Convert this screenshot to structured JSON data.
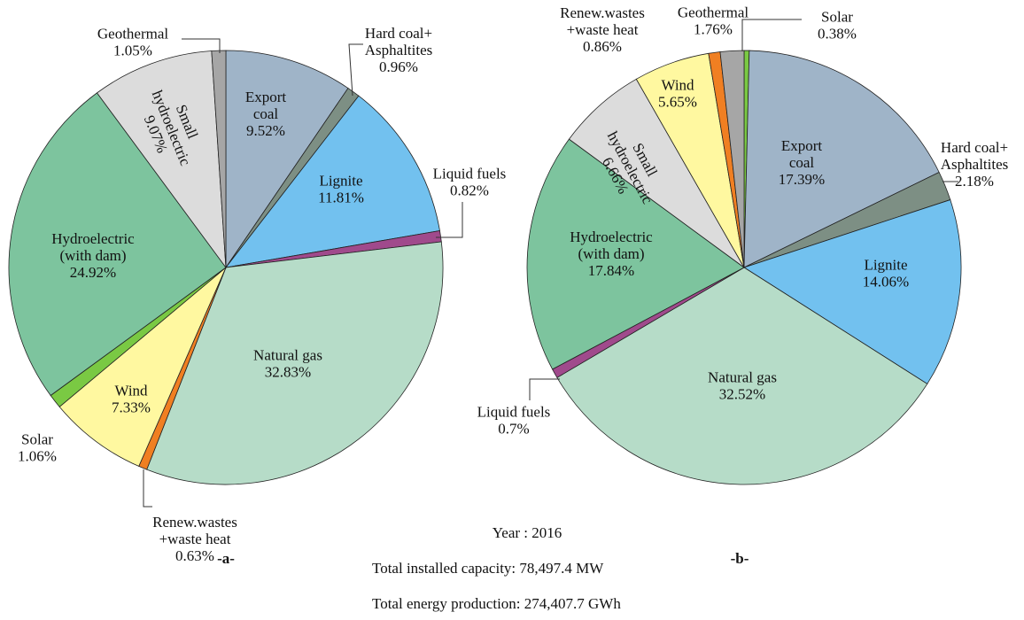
{
  "chart_data": [
    {
      "type": "pie",
      "subtitle": "-a-",
      "categories": [
        "Export\ncoal",
        "Hard coal+\nAsphaltites",
        "Lignite",
        "Liquid fuels",
        "Natural gas",
        "Renew.wastes\n+waste heat",
        "Wind",
        "Solar",
        "Hydroelectric\n(with dam)",
        "Small\nhydroelectric",
        "Geothermal"
      ],
      "values": [
        9.52,
        0.96,
        11.81,
        0.82,
        32.83,
        0.63,
        7.33,
        1.06,
        24.92,
        9.07,
        1.05
      ],
      "value_labels": [
        "9.52%",
        "0.96%",
        "11.81%",
        "0.82%",
        "32.83%",
        "0.63%",
        "7.33%",
        "1.06%",
        "24.92%",
        "9.07%",
        "1.05%"
      ],
      "colors": [
        "#9fb4c8",
        "#7d8f84",
        "#72c1ef",
        "#a04a8c",
        "#b6dcc8",
        "#f07f22",
        "#fff8a0",
        "#7ac943",
        "#7dc49e",
        "#dcdcdc",
        "#a6a6a6"
      ]
    },
    {
      "type": "pie",
      "subtitle": "-b-",
      "categories": [
        "Solar",
        "Export\ncoal",
        "Hard coal+\nAsphaltites",
        "Lignite",
        "Natural gas",
        "Liquid fuels",
        "Hydroelectric\n(with dam)",
        "Small\nhydroelectric",
        "Wind",
        "Renew.wastes\n+waste heat",
        "Geothermal"
      ],
      "values": [
        0.38,
        17.39,
        2.18,
        14.06,
        32.52,
        0.7,
        17.84,
        6.66,
        5.65,
        0.86,
        1.76
      ],
      "value_labels": [
        "0.38%",
        "17.39%",
        "2.18%",
        "14.06%",
        "32.52%",
        "0.7%",
        "17.84%",
        "6.66%",
        "5.65%",
        "0.86%",
        "1.76%"
      ],
      "colors": [
        "#7ac943",
        "#9fb4c8",
        "#7d8f84",
        "#72c1ef",
        "#b6dcc8",
        "#a04a8c",
        "#7dc49e",
        "#dcdcdc",
        "#fff8a0",
        "#f07f22",
        "#a6a6a6"
      ]
    }
  ],
  "caption": {
    "year": "Year : 2016",
    "capacity": "Total installed capacity: 78,497.4 MW",
    "production": "Total energy production: 274,407.7 GWh"
  }
}
